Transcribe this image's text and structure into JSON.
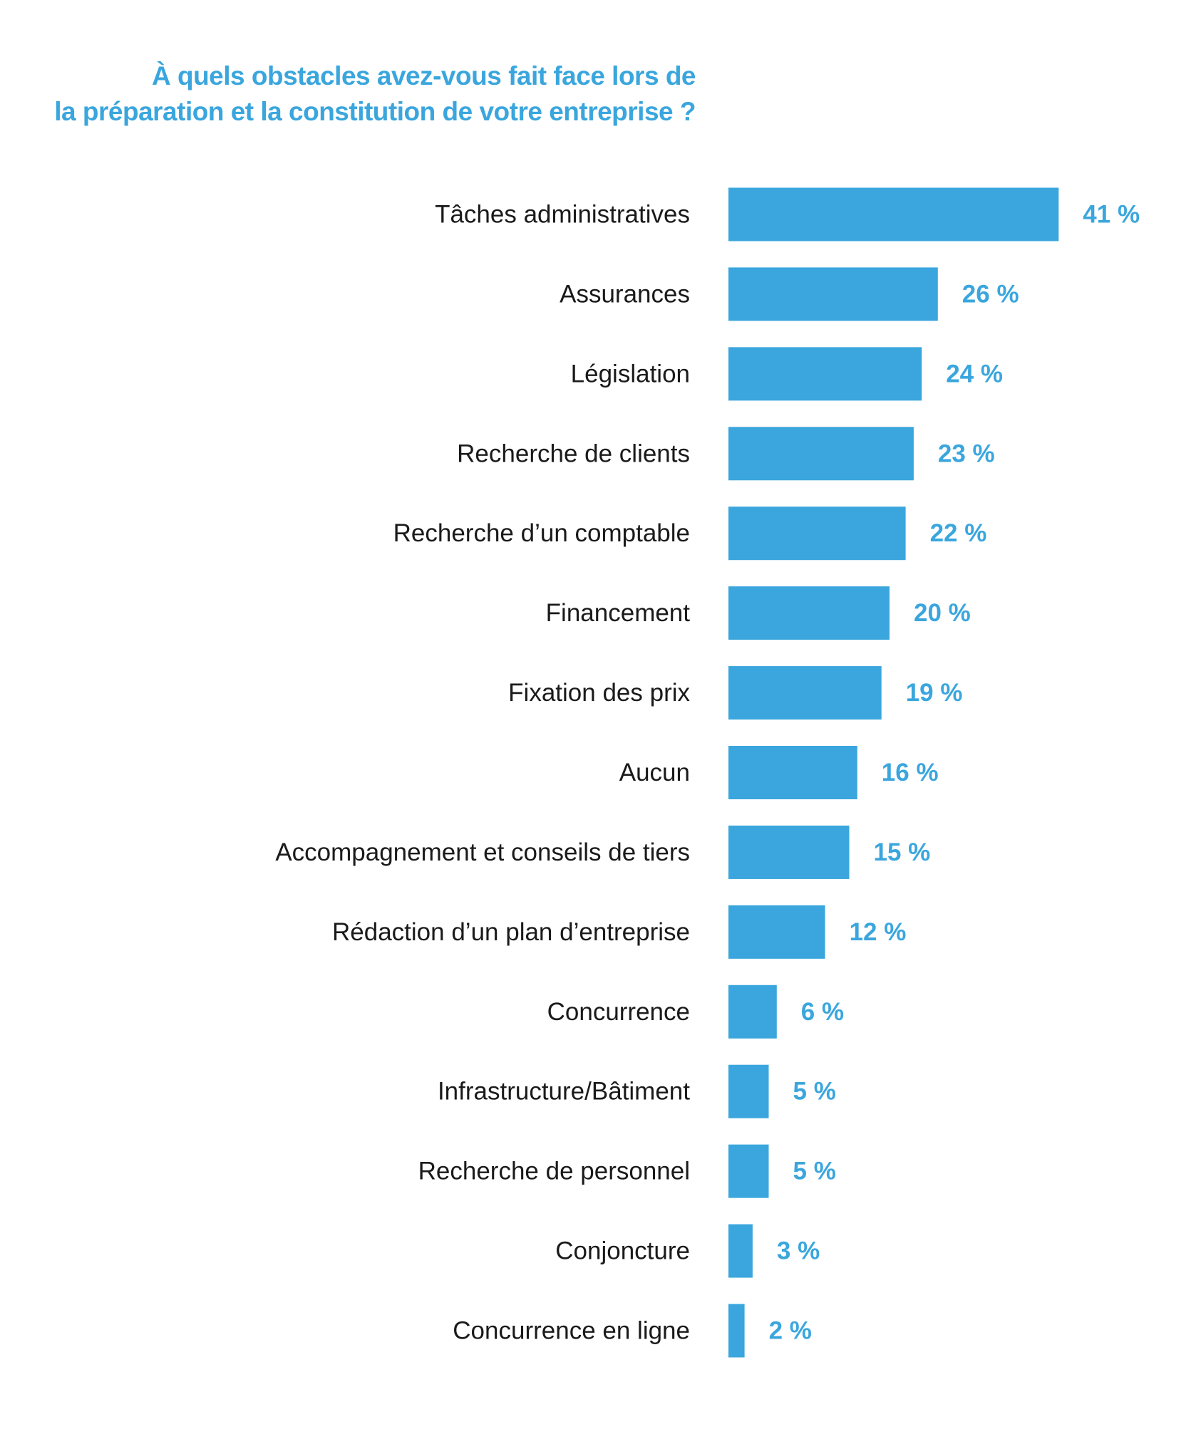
{
  "colors": {
    "accent": "#3aa6dd",
    "label_text": "#1a1a1a",
    "background": "#ffffff"
  },
  "chart_data": {
    "type": "bar",
    "orientation": "horizontal",
    "title_lines": [
      "À quels obstacles avez-vous fait face lors de",
      "la préparation et la constitution de votre entreprise ?"
    ],
    "categories": [
      "Tâches administratives",
      "Assurances",
      "Législation",
      "Recherche de clients",
      "Recherche d’un comptable",
      "Financement",
      "Fixation des prix",
      "Aucun",
      "Accompagnement et conseils de tiers",
      "Rédaction d’un plan d’entreprise",
      "Concurrence",
      "Infrastructure/Bâtiment",
      "Recherche de personnel",
      "Conjoncture",
      "Concurrence en ligne"
    ],
    "values": [
      41,
      26,
      24,
      23,
      22,
      20,
      19,
      16,
      15,
      12,
      6,
      5,
      5,
      3,
      2
    ],
    "value_labels": [
      "41 %",
      "26 %",
      "24 %",
      "23 %",
      "22 %",
      "20 %",
      "19 %",
      "16 %",
      "15 %",
      "12 %",
      "6 %",
      "5 %",
      "5 %",
      "3 %",
      "2 %"
    ],
    "unit": "%",
    "bar_color": "#3aa6dd",
    "grid": false,
    "legend": "none"
  }
}
